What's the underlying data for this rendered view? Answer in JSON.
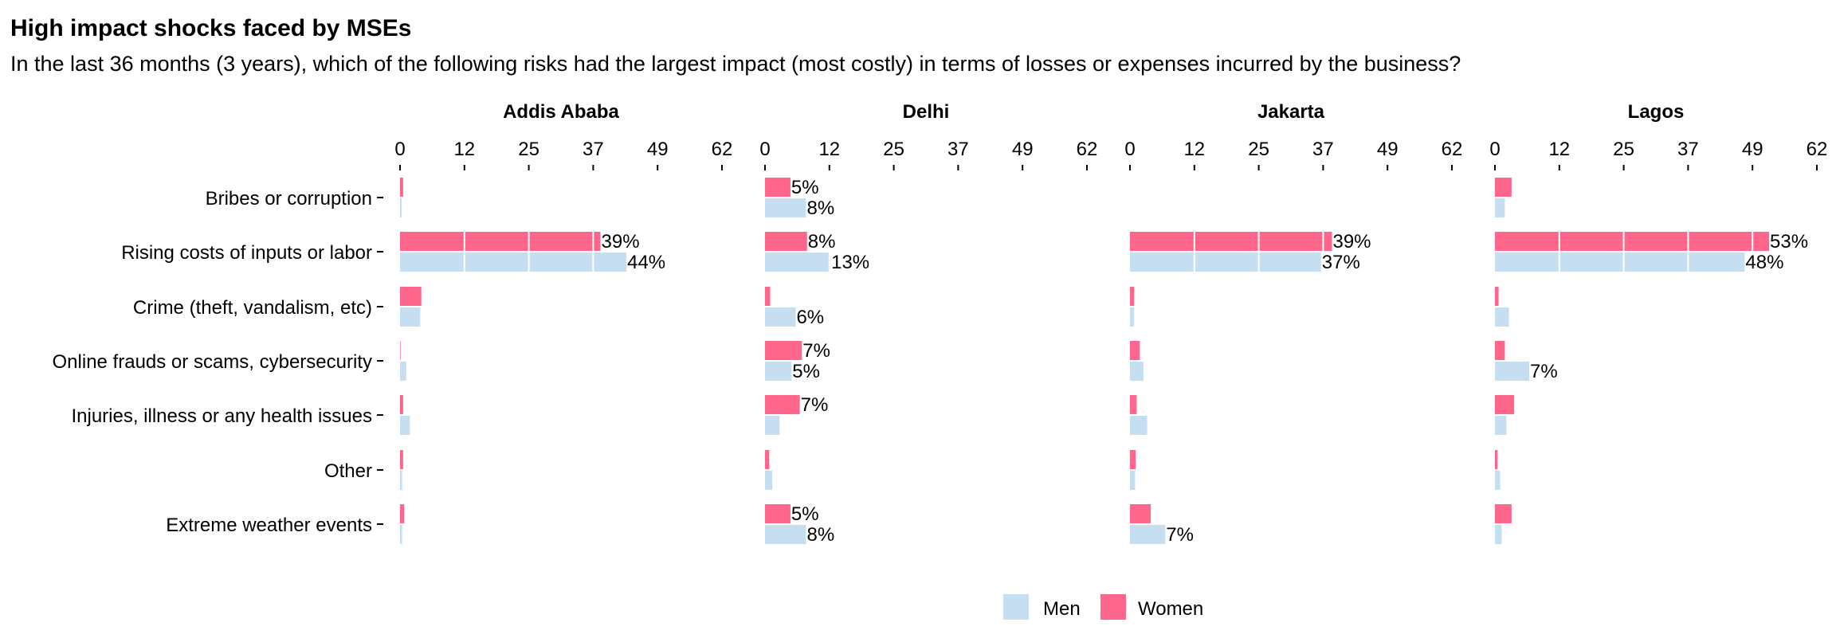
{
  "header": {
    "title": "High impact shocks faced by MSEs",
    "subtitle": "In the last 36 months (3 years), which of the following risks had the largest impact (most costly) in terms of losses or expenses incurred by the business?"
  },
  "chart_data": {
    "type": "bar",
    "orientation": "horizontal",
    "facets": [
      "Addis Ababa",
      "Delhi",
      "Jakarta",
      "Lagos"
    ],
    "categories": [
      "Bribes or corruption",
      "Rising costs of inputs or labor",
      "Crime (theft, vandalism, etc)",
      "Online frauds or scams, cybersecurity",
      "Injuries, illness or any health issues",
      "Other",
      "Extreme weather events"
    ],
    "x_ticks": [
      "0",
      "12",
      "25",
      "37",
      "49",
      "62"
    ],
    "x_tick_values": [
      0,
      12.4,
      24.8,
      37.2,
      49.6,
      62
    ],
    "xlim": [
      0,
      62
    ],
    "grid": false,
    "legend_position": "bottom",
    "colors": {
      "Men": "#c6dff0",
      "Women": "#fe668c"
    },
    "panels": [
      {
        "facet": "Addis Ababa",
        "series": [
          {
            "name": "Women",
            "values": [
              0.6,
              38.6,
              4.1,
              0.1,
              0.6,
              0.6,
              0.8
            ],
            "labels": [
              "",
              "39%",
              "",
              "",
              "",
              "",
              ""
            ]
          },
          {
            "name": "Men",
            "values": [
              0.3,
              43.6,
              3.9,
              1.2,
              1.9,
              0.4,
              0.4
            ],
            "labels": [
              "",
              "44%",
              "",
              "",
              "",
              "",
              ""
            ]
          }
        ]
      },
      {
        "facet": "Delhi",
        "series": [
          {
            "name": "Women",
            "values": [
              4.9,
              8.1,
              1.0,
              7.1,
              6.7,
              0.8,
              4.9
            ],
            "labels": [
              "5%",
              "8%",
              "",
              "7%",
              "7%",
              "",
              "5%"
            ]
          },
          {
            "name": "Men",
            "values": [
              7.9,
              12.6,
              5.9,
              5.1,
              2.8,
              1.4,
              7.9
            ],
            "labels": [
              "8%",
              "13%",
              "6%",
              "5%",
              "",
              "",
              "8%"
            ]
          }
        ]
      },
      {
        "facet": "Jakarta",
        "series": [
          {
            "name": "Women",
            "values": [
              0,
              38.9,
              0.8,
              1.9,
              1.3,
              1.1,
              4.0
            ],
            "labels": [
              "",
              "39%",
              "",
              "",
              "",
              "",
              ""
            ]
          },
          {
            "name": "Men",
            "values": [
              0,
              36.8,
              0.8,
              2.6,
              3.3,
              1.0,
              6.8
            ],
            "labels": [
              "",
              "37%",
              "",
              "",
              "",
              "",
              "7%"
            ]
          }
        ]
      },
      {
        "facet": "Lagos",
        "series": [
          {
            "name": "Women",
            "values": [
              3.2,
              52.8,
              0.7,
              1.9,
              3.7,
              0.5,
              3.2
            ],
            "labels": [
              "",
              "53%",
              "",
              "",
              "",
              "",
              ""
            ]
          },
          {
            "name": "Men",
            "values": [
              1.9,
              48.1,
              2.7,
              6.6,
              2.2,
              1.0,
              1.3
            ],
            "labels": [
              "",
              "48%",
              "",
              "7%",
              "",
              "",
              ""
            ]
          }
        ]
      }
    ],
    "legend": [
      {
        "name": "Men",
        "label": "Men"
      },
      {
        "name": "Women",
        "label": "Women"
      }
    ]
  }
}
